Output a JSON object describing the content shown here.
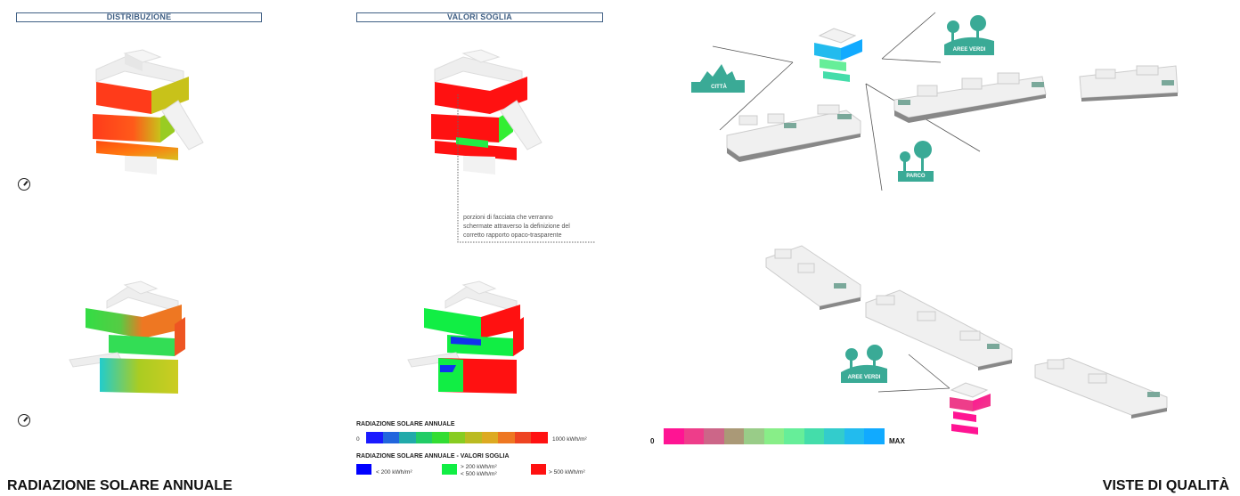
{
  "headers": {
    "distribuzione": "DISTRIBUZIONE",
    "valori_soglia": "VALORI SOGLIA"
  },
  "note": {
    "line1": "porzioni di facciata che verranno",
    "line2": "schermate attraverso la definizione del",
    "line3": "corretto rapporto opaco-trasparente"
  },
  "legend": {
    "annual_title": "RADIAZIONE SOLARE ANNUALE",
    "annual_min": "0",
    "annual_max": "1000  kWh/m²",
    "annual_colors": [
      "#1a1aff",
      "#2266dd",
      "#22aaaa",
      "#22cc66",
      "#33dd33",
      "#88cc22",
      "#bbbb22",
      "#ddaa22",
      "#ee7722",
      "#ee4422",
      "#ff1111"
    ],
    "threshold_title": "RADIAZIONE SOLARE ANNUALE - VALORI SOGLIA",
    "threshold_low": "< 200 kWh/m²",
    "threshold_mid_1": "> 200 kWh/m²",
    "threshold_mid_2": "< 500 kWh/m²",
    "threshold_high": "> 500 kWh/m²",
    "threshold_colors": {
      "low": "#0000ff",
      "mid": "#11ee44",
      "high": "#ff1111"
    }
  },
  "quality": {
    "label_citta": "CITTÀ",
    "label_aree_verdi_top": "AREE VERDI",
    "label_parco": "PARCO",
    "label_aree_verdi_bottom": "AREE VERDI",
    "scale_min": "0",
    "scale_max": "MAX",
    "scale_colors": [
      "#ff1493",
      "#ee3d8a",
      "#cc6688",
      "#aa9977",
      "#99cc88",
      "#88ee88",
      "#66ee99",
      "#44ddaa",
      "#33cccc",
      "#22bbee",
      "#11aaff"
    ],
    "accent": "#3aaa96"
  },
  "titles": {
    "left": "RADIAZIONE SOLARE ANNUALE",
    "right": "VISTE DI QUALITÀ"
  }
}
